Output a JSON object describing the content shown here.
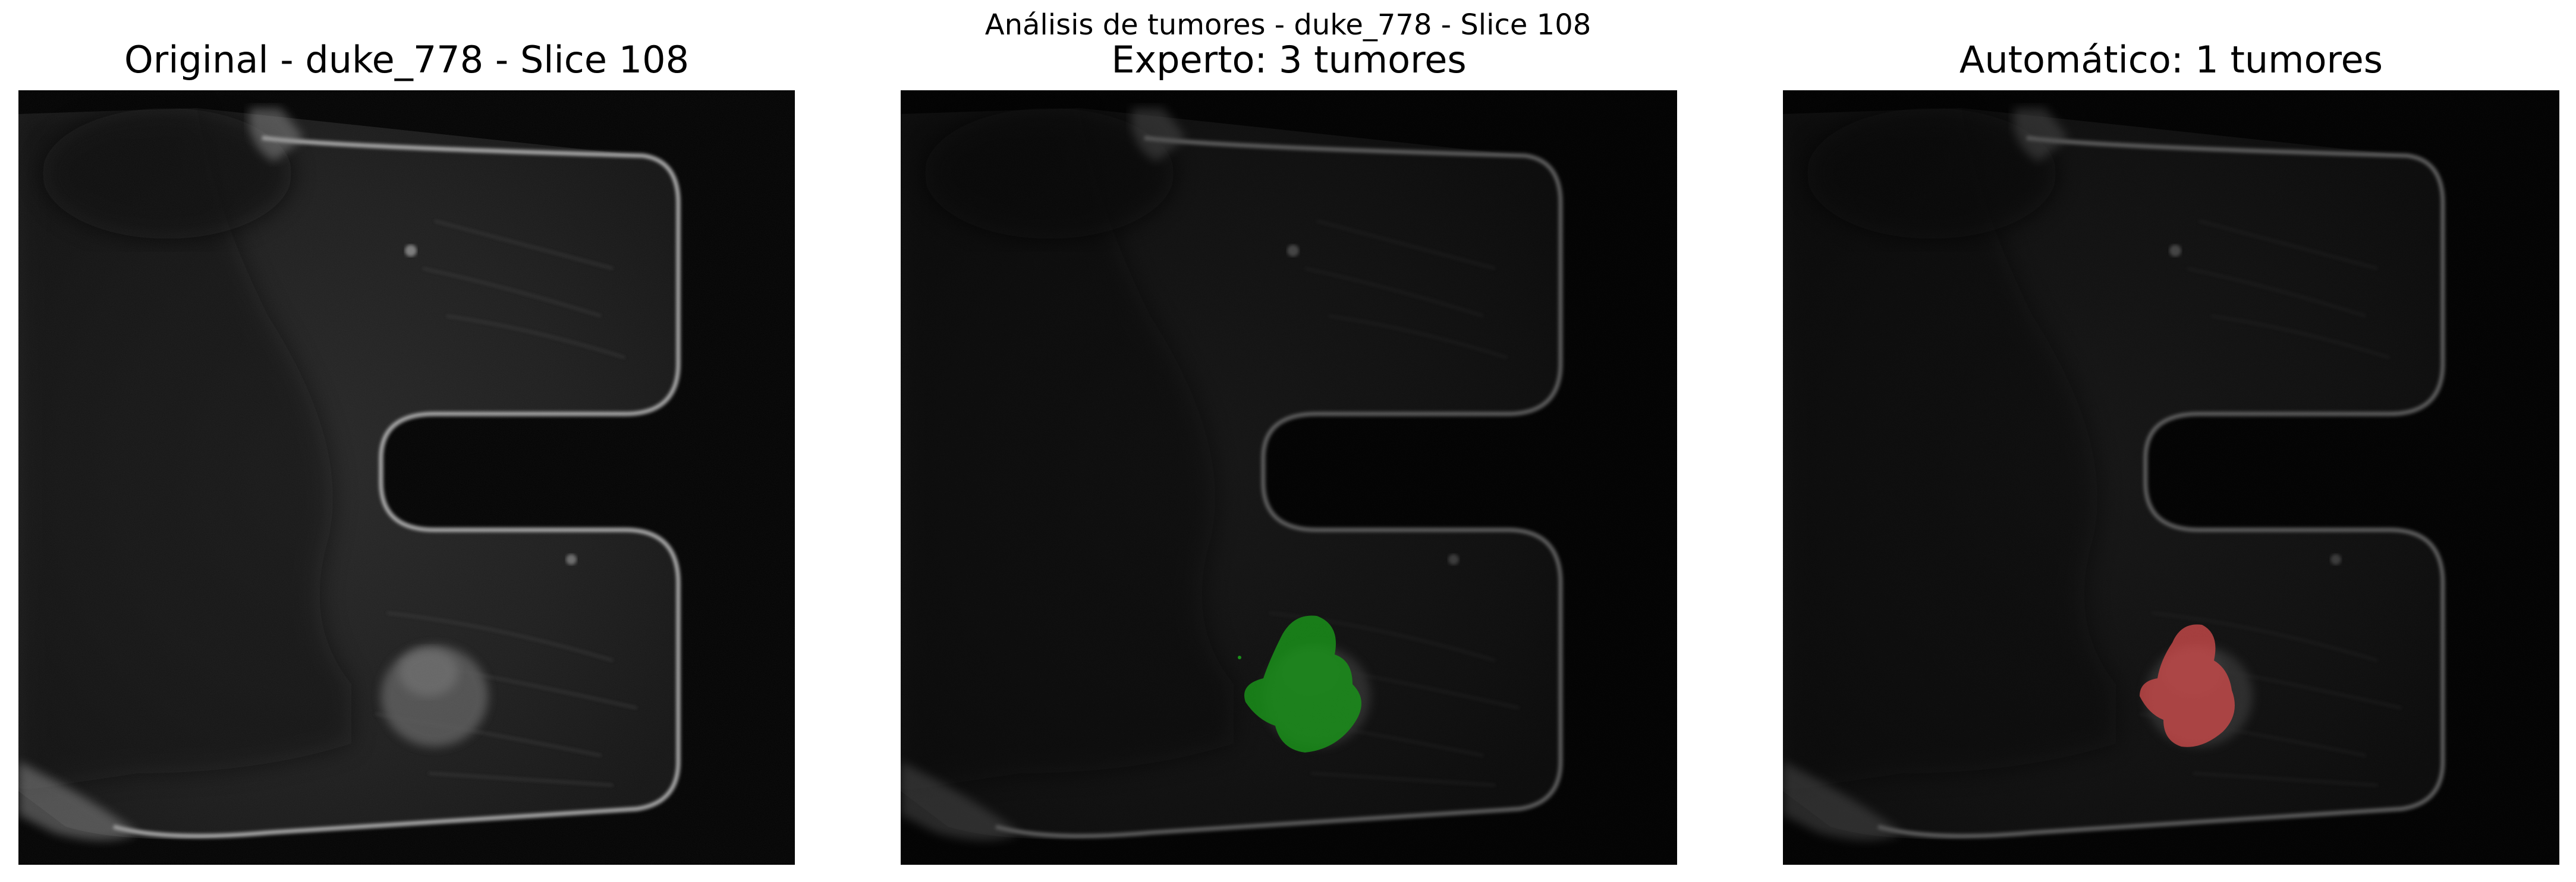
{
  "figure": {
    "suptitle": "Análisis de tumores - duke_778 - Slice 108"
  },
  "panels": [
    {
      "title": "Original - duke_778 - Slice 108",
      "overlay": "none"
    },
    {
      "title": "Experto: 3 tumores",
      "overlay": "expert-segmentation",
      "overlay_color": "#1a8f1a"
    },
    {
      "title": "Automático: 1 tumores",
      "overlay": "automatic-segmentation",
      "overlay_color": "#c94a4a"
    }
  ],
  "colors": {
    "background": "#000000",
    "tissue": "#1c1c1c",
    "skin_edge": "#bdbdbd"
  }
}
